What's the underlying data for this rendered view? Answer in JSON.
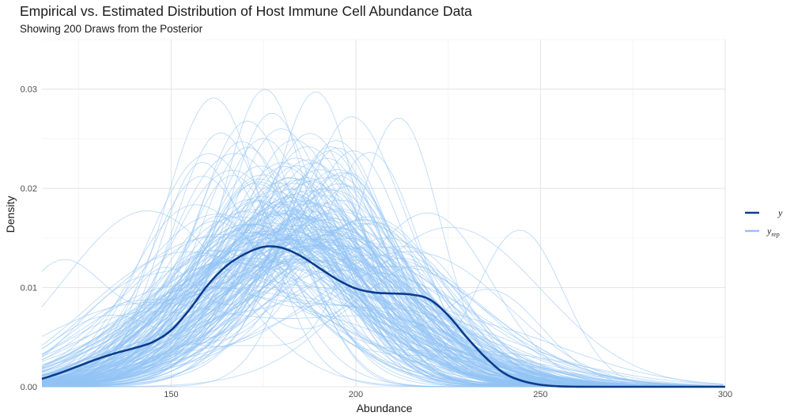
{
  "chart_data": {
    "type": "line",
    "title": "Empirical vs. Estimated Distribution of Host Immune Cell Abundance Data",
    "subtitle": "Showing 200 Draws from the Posterior",
    "xlabel": "Abundance",
    "ylabel": "Density",
    "xlim": [
      115,
      300
    ],
    "ylim": [
      0,
      0.035
    ],
    "x_ticks": [
      150,
      200,
      250,
      300
    ],
    "x_tick_labels": [
      "150",
      "200",
      "250",
      "300"
    ],
    "y_ticks": [
      0,
      0.01,
      0.02,
      0.03
    ],
    "y_tick_labels": [
      "0.00",
      "0.01",
      "0.02",
      "0.03"
    ],
    "grid": true,
    "legend_position": "right",
    "legend": [
      {
        "label": "y",
        "color": "#0b3c8c"
      },
      {
        "label": "y",
        "subscript": "rep",
        "color": "#91c3f5"
      }
    ],
    "replicate_draws": 200,
    "colors": {
      "y": "#0b3c8c",
      "y_rep": "#91c3f5"
    },
    "series": [
      {
        "name": "y",
        "x": [
          115,
          120,
          125,
          130,
          135,
          140,
          145,
          150,
          155,
          160,
          165,
          170,
          175,
          180,
          185,
          190,
          195,
          200,
          205,
          210,
          215,
          220,
          225,
          230,
          235,
          240,
          245,
          250,
          255,
          260,
          270,
          280,
          290,
          300
        ],
        "y": [
          0.0008,
          0.0014,
          0.0021,
          0.0028,
          0.0034,
          0.0039,
          0.0045,
          0.0057,
          0.0078,
          0.0103,
          0.0122,
          0.0134,
          0.0141,
          0.014,
          0.0132,
          0.012,
          0.0108,
          0.0099,
          0.0095,
          0.0094,
          0.0093,
          0.0088,
          0.0072,
          0.005,
          0.003,
          0.0014,
          0.0006,
          0.0002,
          5e-05,
          1e-05,
          0,
          0,
          0,
          0
        ]
      }
    ]
  }
}
